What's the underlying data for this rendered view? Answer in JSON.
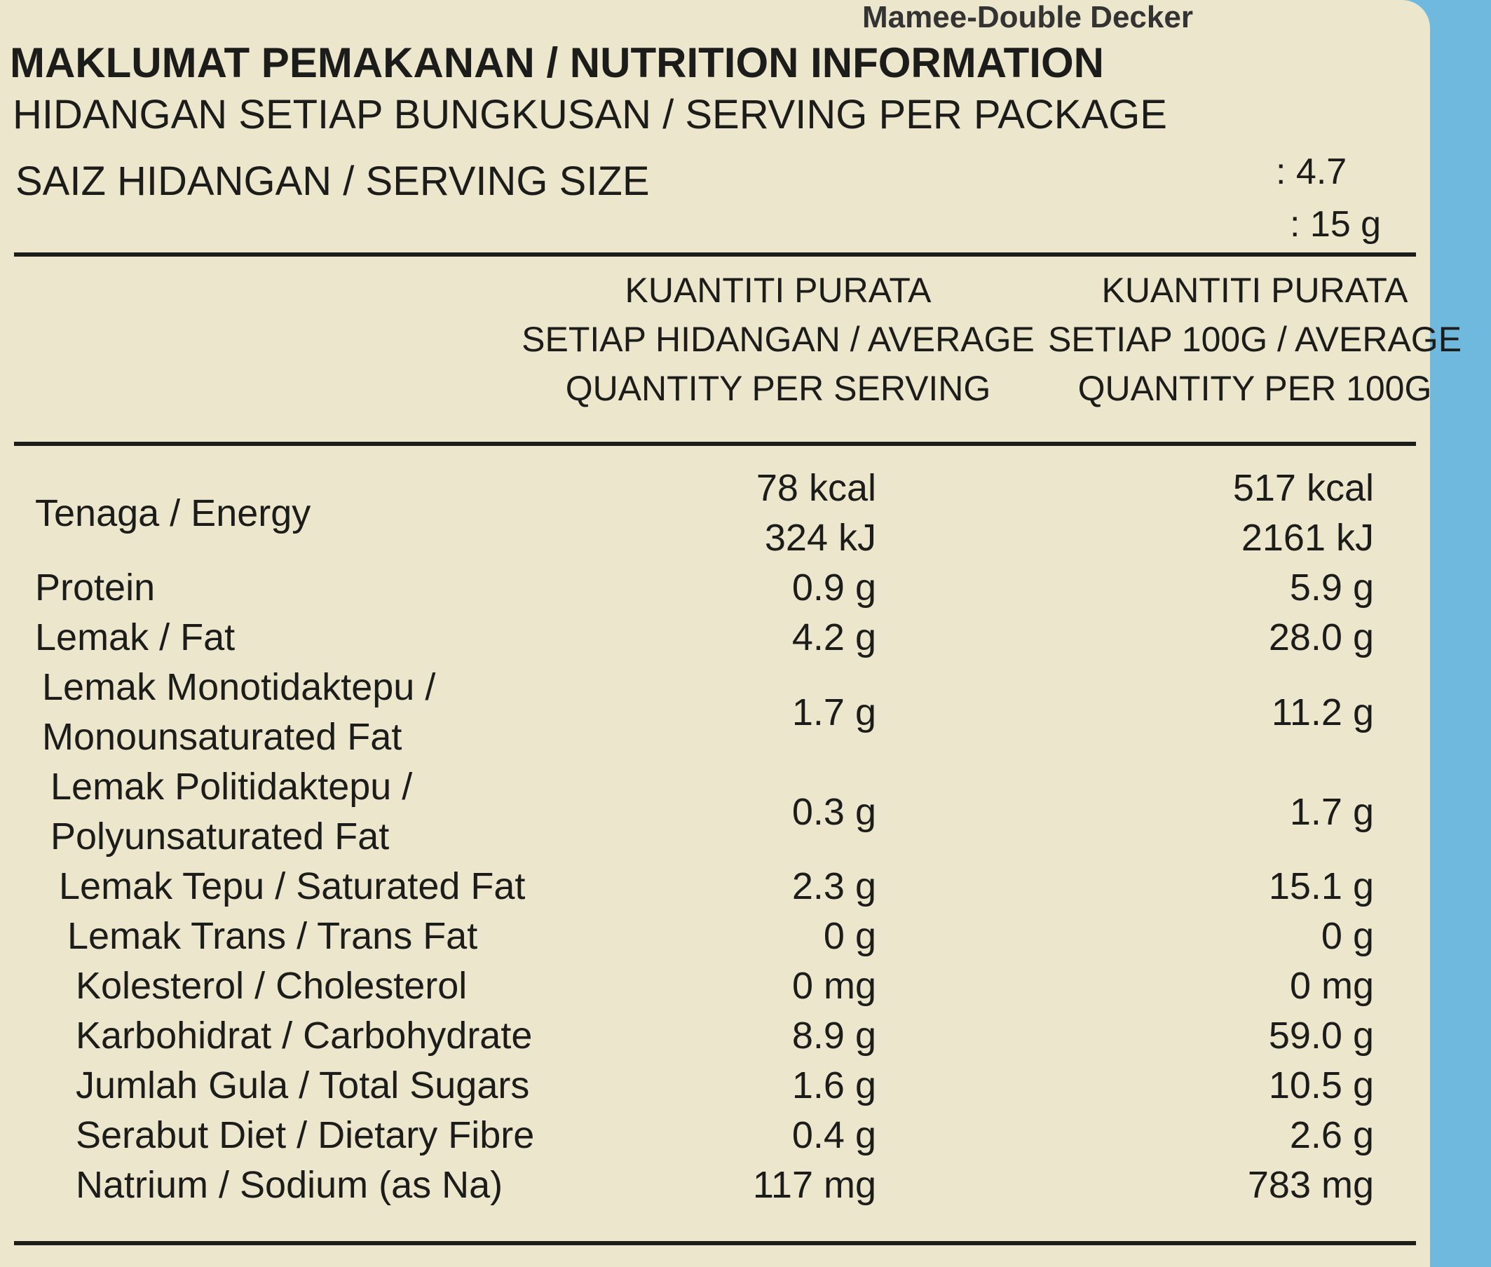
{
  "brand": "Mamee-Double Decker",
  "title": "MAKLUMAT PEMAKANAN / NUTRITION INFORMATION",
  "servings_per_package": {
    "label": "HIDANGAN SETIAP BUNGKUSAN  / SERVING PER PACKAGE",
    "value": ": 4.7"
  },
  "serving_size": {
    "label": "SAIZ HIDANGAN / SERVING SIZE",
    "value": ": 15 g"
  },
  "table": {
    "headers": [
      [
        "KUANTITI PURATA",
        "SETIAP HIDANGAN / AVERAGE",
        "QUANTITY PER SERVING"
      ],
      [
        "KUANTITI PURATA",
        "SETIAP 100G / AVERAGE",
        "QUANTITY PER 100G"
      ]
    ],
    "rows": [
      {
        "label": [
          "Tenaga / Energy"
        ],
        "per_serving": [
          "78 kcal",
          "324 kJ"
        ],
        "per_100g": [
          "517 kcal",
          "2161 kJ"
        ]
      },
      {
        "label": [
          "Protein"
        ],
        "per_serving": [
          "0.9 g"
        ],
        "per_100g": [
          "5.9 g"
        ]
      },
      {
        "label": [
          "Lemak / Fat"
        ],
        "per_serving": [
          "4.2 g"
        ],
        "per_100g": [
          "28.0 g"
        ]
      },
      {
        "label": [
          "Lemak Monotidaktepu /",
          "Monounsaturated Fat"
        ],
        "per_serving": [
          "1.7 g"
        ],
        "per_100g": [
          "11.2 g"
        ]
      },
      {
        "label": [
          "Lemak Politidaktepu /",
          "Polyunsaturated Fat"
        ],
        "per_serving": [
          "0.3 g"
        ],
        "per_100g": [
          "1.7 g"
        ]
      },
      {
        "label": [
          "Lemak Tepu / Saturated Fat"
        ],
        "per_serving": [
          "2.3 g"
        ],
        "per_100g": [
          "15.1 g"
        ]
      },
      {
        "label": [
          "Lemak Trans / Trans Fat"
        ],
        "per_serving": [
          "0 g"
        ],
        "per_100g": [
          "0 g"
        ]
      },
      {
        "label": [
          "Kolesterol / Cholesterol"
        ],
        "per_serving": [
          "0 mg"
        ],
        "per_100g": [
          "0 mg"
        ]
      },
      {
        "label": [
          "Karbohidrat / Carbohydrate"
        ],
        "per_serving": [
          "8.9 g"
        ],
        "per_100g": [
          "59.0 g"
        ]
      },
      {
        "label": [
          "Jumlah Gula / Total Sugars"
        ],
        "per_serving": [
          "1.6 g"
        ],
        "per_100g": [
          "10.5 g"
        ]
      },
      {
        "label": [
          "Serabut Diet / Dietary Fibre"
        ],
        "per_serving": [
          "0.4 g"
        ],
        "per_100g": [
          "2.6 g"
        ]
      },
      {
        "label": [
          "Natrium / Sodium (as Na)"
        ],
        "per_serving": [
          "117 mg"
        ],
        "per_100g": [
          "783 mg"
        ]
      }
    ]
  }
}
